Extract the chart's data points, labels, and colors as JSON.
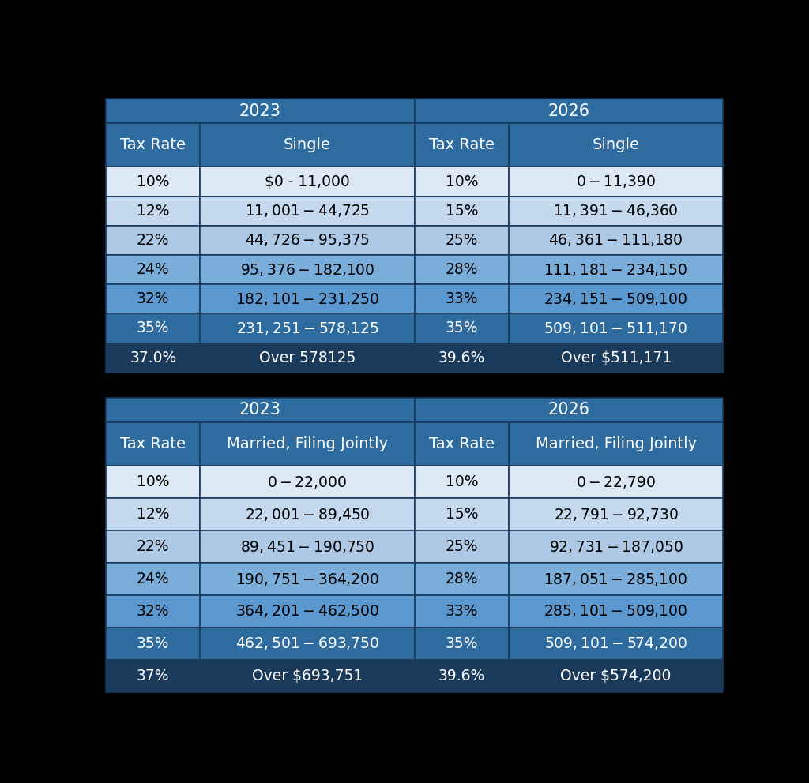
{
  "background_color": "#000000",
  "colors": {
    "header_year": "#2e6b9e",
    "header_col": "#2e6b9e",
    "row_0": "#dce9f5",
    "row_1": "#c5d9ee",
    "row_2": "#adc9e6",
    "row_3": "#7aadda",
    "row_4": "#5b98d0",
    "row_5": "#2e6b9e",
    "row_6": "#1a3a5c",
    "border": "#1a3a5c"
  },
  "table1": {
    "year2023_header": "2023",
    "year2026_header": "2026",
    "col_headers": [
      "Tax Rate",
      "Single",
      "Tax Rate",
      "Single"
    ],
    "rows": [
      [
        "10%",
        "$0 - 11,000",
        "10%",
        "$0 - $11,390"
      ],
      [
        "12%",
        "$11,001 - $44,725",
        "15%",
        "$11,391 - $46,360"
      ],
      [
        "22%",
        "$44,726 - $95,375",
        "25%",
        "$46, 361 - $111,180"
      ],
      [
        "24%",
        "$95,376 - $182,100",
        "28%",
        "$111,181 - $234,150"
      ],
      [
        "32%",
        "$182,101 - $231,250",
        "33%",
        "$234,151 - $509,100"
      ],
      [
        "35%",
        "$231,251 - $578,125",
        "35%",
        "$509,101 - $511,170"
      ],
      [
        "37.0%",
        "Over 578125",
        "39.6%",
        "Over $511,171"
      ]
    ],
    "row_colors": [
      "row_0",
      "row_1",
      "row_2",
      "row_3",
      "row_4",
      "row_5",
      "row_6"
    ],
    "row_text_colors": [
      "#000000",
      "#000000",
      "#000000",
      "#000000",
      "#000000",
      "#ffffff",
      "#ffffff"
    ]
  },
  "table2": {
    "year2023_header": "2023",
    "year2026_header": "2026",
    "col_headers": [
      "Tax Rate",
      "Married, Filing Jointly",
      "Tax Rate",
      "Married, Filing Jointly"
    ],
    "rows": [
      [
        "10%",
        "$0 - $22,000",
        "10%",
        "$0 - $22,790"
      ],
      [
        "12%",
        "$22,001 - $89,450",
        "15%",
        "$22,791 - $92,730"
      ],
      [
        "22%",
        "$89,451 - $190,750",
        "25%",
        "$92,731 - $187,050"
      ],
      [
        "24%",
        "$190,751 - $364,200",
        "28%",
        "$187,051 - $285,100"
      ],
      [
        "32%",
        "$364,201 - $462,500",
        "33%",
        "$285,101 - $509,100"
      ],
      [
        "35%",
        "$462,501 - $693,750",
        "35%",
        "$509,101 - $574,200"
      ],
      [
        "37%",
        "Over $693,751",
        "39.6%",
        "Over $574,200"
      ]
    ],
    "row_colors": [
      "row_0",
      "row_1",
      "row_2",
      "row_3",
      "row_4",
      "row_5",
      "row_6"
    ],
    "row_text_colors": [
      "#000000",
      "#000000",
      "#000000",
      "#000000",
      "#000000",
      "#ffffff",
      "#ffffff"
    ]
  }
}
